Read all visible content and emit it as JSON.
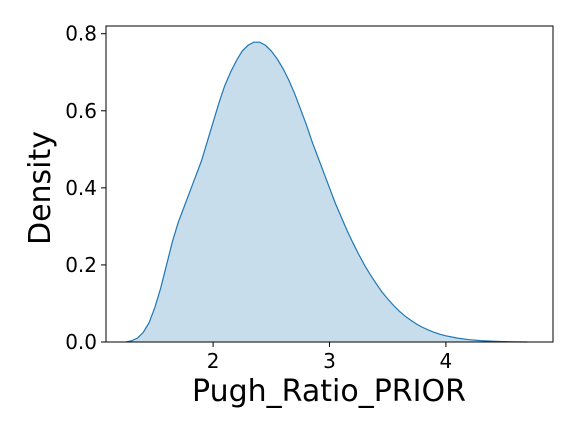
{
  "chart_data": {
    "type": "area",
    "title": "",
    "xlabel": "Pugh_Ratio_PRIOR",
    "ylabel": "Density",
    "xlim": [
      1.08,
      4.92
    ],
    "ylim": [
      0.0,
      0.82
    ],
    "x_ticks": [
      2,
      3,
      4
    ],
    "y_ticks": [
      0.0,
      0.2,
      0.4,
      0.6,
      0.8
    ],
    "x_tick_labels": [
      "2",
      "3",
      "4"
    ],
    "y_tick_labels": [
      "0.0",
      "0.2",
      "0.4",
      "0.6",
      "0.8"
    ],
    "grid": false,
    "legend": "none",
    "colors": {
      "fill": "#1f77b4",
      "fill_opacity": 0.25,
      "line": "#1f77b4"
    },
    "series": [
      {
        "x": [
          1.25,
          1.3,
          1.35,
          1.4,
          1.45,
          1.5,
          1.55,
          1.6,
          1.65,
          1.7,
          1.75,
          1.8,
          1.85,
          1.9,
          1.95,
          2.0,
          2.05,
          2.1,
          2.15,
          2.2,
          2.25,
          2.3,
          2.35,
          2.4,
          2.45,
          2.5,
          2.55,
          2.6,
          2.65,
          2.7,
          2.75,
          2.8,
          2.85,
          2.9,
          2.95,
          3.0,
          3.05,
          3.1,
          3.15,
          3.2,
          3.25,
          3.3,
          3.35,
          3.4,
          3.45,
          3.5,
          3.55,
          3.6,
          3.65,
          3.7,
          3.75,
          3.8,
          3.85,
          3.9,
          3.95,
          4.0,
          4.1,
          4.2,
          4.3,
          4.4,
          4.5,
          4.6,
          4.7
        ],
        "y": [
          0.0,
          0.003,
          0.01,
          0.025,
          0.05,
          0.09,
          0.14,
          0.2,
          0.26,
          0.31,
          0.35,
          0.39,
          0.43,
          0.47,
          0.52,
          0.57,
          0.62,
          0.665,
          0.7,
          0.73,
          0.755,
          0.77,
          0.778,
          0.778,
          0.77,
          0.755,
          0.735,
          0.71,
          0.68,
          0.645,
          0.605,
          0.565,
          0.52,
          0.48,
          0.44,
          0.4,
          0.36,
          0.325,
          0.29,
          0.258,
          0.228,
          0.2,
          0.175,
          0.152,
          0.13,
          0.112,
          0.095,
          0.08,
          0.067,
          0.056,
          0.046,
          0.038,
          0.031,
          0.025,
          0.02,
          0.016,
          0.01,
          0.006,
          0.0035,
          0.002,
          0.001,
          0.0004,
          0.0
        ]
      }
    ]
  }
}
